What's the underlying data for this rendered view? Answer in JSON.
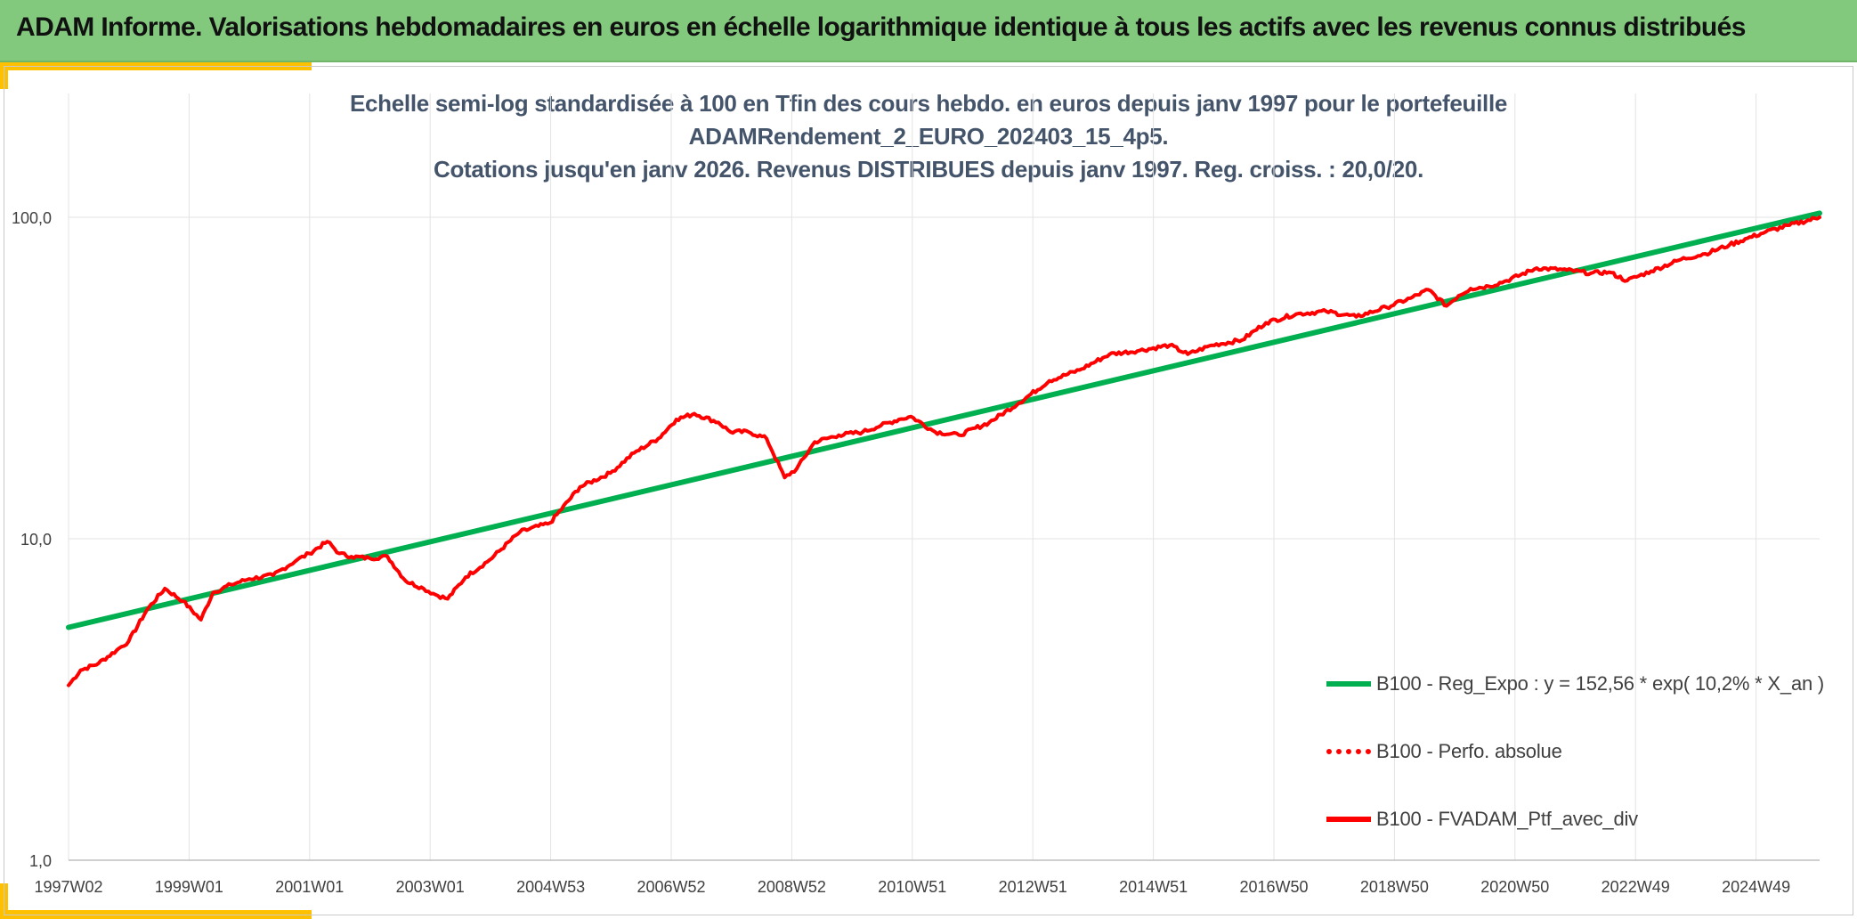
{
  "header": {
    "title": "ADAM Informe. Valorisations hebdomadaires en euros en échelle logarithmique identique à tous les actifs avec les revenus connus distribués"
  },
  "chart_title": {
    "line1": "Echelle semi-log standardisée à 100 en Tfin des cours hebdo. en euros depuis janv 1997 pour le portefeuille",
    "line2": "ADAMRendement_2_EURO_202403_15_4p5.",
    "line3": "Cotations jusqu'en janv 2026. Revenus DISTRIBUES depuis janv 1997. Reg. croiss. : 20,0/20."
  },
  "legend": {
    "reg": "B100 - Reg_Expo : y = 152,56 * exp( 10,2% *  X_an )",
    "perf": "B100 - Perfo. absolue",
    "ptf": "B100 - FVADAM_Ptf_avec_div"
  },
  "chart_data": {
    "type": "line",
    "y_scale": "log",
    "ylim": [
      1,
      100
    ],
    "y_tick_labels": [
      "1,0",
      "10,0",
      "100,0"
    ],
    "x_tick_labels": [
      "1997W02",
      "1999W01",
      "2001W01",
      "2003W01",
      "2004W53",
      "2006W52",
      "2008W52",
      "2010W51",
      "2012W51",
      "2014W51",
      "2016W50",
      "2018W50",
      "2020W50",
      "2022W49",
      "2024W49"
    ],
    "x_range": [
      1997.0,
      2026.1
    ],
    "series": [
      {
        "name": "B100 - Reg_Expo : y = 152,56 * exp( 10,2% *  X_an )",
        "color": "#00b050",
        "style": "solid",
        "x": [
          1997.0,
          2026.1
        ],
        "y": [
          5.3,
          103.0
        ]
      },
      {
        "name": "B100 - FVADAM_Ptf_avec_div",
        "color": "#ff0000",
        "style": "solid",
        "x": [
          1997.0,
          1997.2,
          1997.5,
          1997.8,
          1998.0,
          1998.3,
          1998.6,
          1998.9,
          1999.2,
          1999.4,
          1999.7,
          2000.0,
          2000.4,
          2000.8,
          2001.0,
          2001.3,
          2001.5,
          2001.7,
          2002.0,
          2002.3,
          2002.6,
          2002.9,
          2003.1,
          2003.3,
          2003.6,
          2004.0,
          2004.5,
          2005.0,
          2005.5,
          2006.0,
          2006.4,
          2006.8,
          2007.1,
          2007.4,
          2007.8,
          2008.0,
          2008.3,
          2008.6,
          2008.9,
          2009.1,
          2009.4,
          2009.8,
          2010.2,
          2010.5,
          2010.8,
          2011.0,
          2011.4,
          2011.8,
          2012.3,
          2012.8,
          2013.3,
          2013.8,
          2014.3,
          2014.8,
          2015.3,
          2015.6,
          2016.0,
          2016.5,
          2016.9,
          2017.4,
          2017.9,
          2018.4,
          2018.9,
          2019.3,
          2019.6,
          2019.9,
          2020.1,
          2020.3,
          2020.6,
          2020.9,
          2021.4,
          2021.9,
          2022.3,
          2022.6,
          2022.9,
          2023.3,
          2023.8,
          2024.2,
          2024.6,
          2024.9,
          2025.2,
          2025.6,
          2026.1
        ],
        "y": [
          3.5,
          3.9,
          4.1,
          4.5,
          4.8,
          6.0,
          7.0,
          6.4,
          5.6,
          6.8,
          7.2,
          7.5,
          7.7,
          8.6,
          9.0,
          9.8,
          9.0,
          8.8,
          8.7,
          8.8,
          7.4,
          7.0,
          6.7,
          6.5,
          7.6,
          8.6,
          10.5,
          11.2,
          14.5,
          16.0,
          18.5,
          20.5,
          23.5,
          24.5,
          23.0,
          21.5,
          21.5,
          20.5,
          15.5,
          16.5,
          20.0,
          21.0,
          21.5,
          22.5,
          23.5,
          24.0,
          21.5,
          21.0,
          23.0,
          26.5,
          31.0,
          33.5,
          37.5,
          38.5,
          40.0,
          37.5,
          40.0,
          41.5,
          47.0,
          50.0,
          51.0,
          49.0,
          52.5,
          56.0,
          59.5,
          53.0,
          57.0,
          60.0,
          61.0,
          63.5,
          69.5,
          68.5,
          67.0,
          67.5,
          63.5,
          68.0,
          74.0,
          77.0,
          82.0,
          86.0,
          90.0,
          94.5,
          100.0
        ]
      }
    ],
    "legend_series": [
      {
        "name": "B100 - Reg_Expo : y = 152,56 * exp( 10,2% *  X_an )",
        "color": "#00b050",
        "style": "solid"
      },
      {
        "name": "B100 - Perfo. absolue",
        "color": "#ff0000",
        "style": "dotted"
      },
      {
        "name": "B100 - FVADAM_Ptf_avec_div",
        "color": "#ff0000",
        "style": "solid"
      }
    ],
    "grid": true,
    "legend_position": "bottom-right"
  }
}
